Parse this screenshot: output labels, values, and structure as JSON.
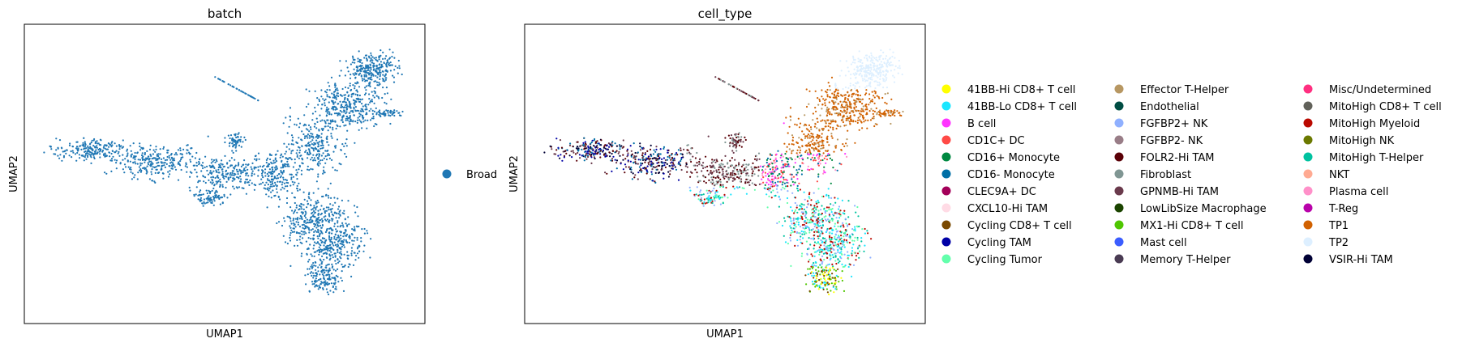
{
  "chart_data": [
    {
      "type": "scatter",
      "title": "batch",
      "xlabel": "UMAP1",
      "ylabel": "UMAP2",
      "xlim": [
        0,
        10
      ],
      "ylim": [
        0,
        10
      ],
      "grid": false,
      "legend": "right",
      "series": [
        {
          "name": "Broad",
          "color": "#1f77b4"
        }
      ]
    },
    {
      "type": "scatter",
      "title": "cell_type",
      "xlabel": "UMAP1",
      "ylabel": "UMAP2",
      "xlim": [
        0,
        10
      ],
      "ylim": [
        0,
        10
      ],
      "grid": false,
      "legend": "right",
      "series": [
        {
          "name": "41BB-Hi CD8+ T cell",
          "color": "#ffff00"
        },
        {
          "name": "41BB-Lo CD8+ T cell",
          "color": "#1ce6ff"
        },
        {
          "name": "B cell",
          "color": "#ff34ff"
        },
        {
          "name": "CD1C+ DC",
          "color": "#ff4a46"
        },
        {
          "name": "CD16+ Monocyte",
          "color": "#008941"
        },
        {
          "name": "CD16- Monocyte",
          "color": "#006fa6"
        },
        {
          "name": "CLEC9A+ DC",
          "color": "#a30059"
        },
        {
          "name": "CXCL10-Hi TAM",
          "color": "#ffdbe5"
        },
        {
          "name": "Cycling CD8+ T cell",
          "color": "#7a4900"
        },
        {
          "name": "Cycling TAM",
          "color": "#0000a6"
        },
        {
          "name": "Cycling Tumor",
          "color": "#63ffac"
        },
        {
          "name": "Effector T-Helper",
          "color": "#b79762"
        },
        {
          "name": "Endothelial",
          "color": "#004d43"
        },
        {
          "name": "FGFBP2+ NK",
          "color": "#8fb0ff"
        },
        {
          "name": "FGFBP2- NK",
          "color": "#997d87"
        },
        {
          "name": "FOLR2-Hi TAM",
          "color": "#5a0007"
        },
        {
          "name": "Fibroblast",
          "color": "#809693"
        },
        {
          "name": "GPNMB-Hi TAM",
          "color": "#6a3a4c"
        },
        {
          "name": "LowLibSize Macrophage",
          "color": "#1b4400"
        },
        {
          "name": "MX1-Hi CD8+ T cell",
          "color": "#4fc601"
        },
        {
          "name": "Mast cell",
          "color": "#3b5dff"
        },
        {
          "name": "Memory T-Helper",
          "color": "#4a3b53"
        },
        {
          "name": "Misc/Undetermined",
          "color": "#ff2f80"
        },
        {
          "name": "MitoHigh CD8+ T cell",
          "color": "#61615a"
        },
        {
          "name": "MitoHigh Myeloid",
          "color": "#ba0900"
        },
        {
          "name": "MitoHigh NK",
          "color": "#6b7900"
        },
        {
          "name": "MitoHigh T-Helper",
          "color": "#00c2a0"
        },
        {
          "name": "NKT",
          "color": "#ffaa92"
        },
        {
          "name": "Plasma cell",
          "color": "#ff90c9"
        },
        {
          "name": "T-Reg",
          "color": "#b903aa"
        },
        {
          "name": "TP1",
          "color": "#d16100"
        },
        {
          "name": "TP2",
          "color": "#ddefff"
        },
        {
          "name": "VSIR-Hi TAM",
          "color": "#000035"
        }
      ]
    }
  ]
}
